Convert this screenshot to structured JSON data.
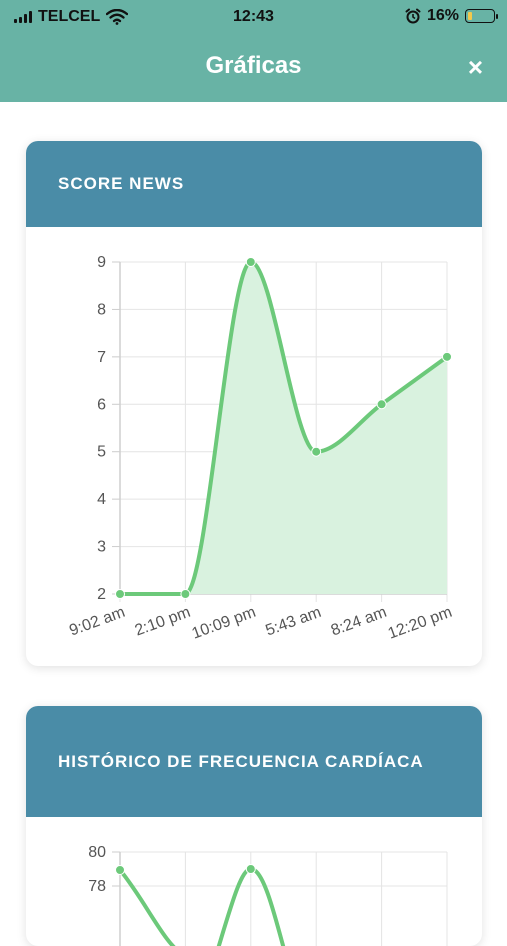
{
  "status_bar": {
    "carrier": "TELCEL",
    "time": "12:43",
    "battery": "16%",
    "battery_level": 0.16
  },
  "header": {
    "title": "Gráficas",
    "close_label": "×"
  },
  "charts": [
    {
      "title": "SCORE NEWS",
      "chart_data": {
        "type": "area",
        "categories": [
          "9:02 am",
          "2:10 pm",
          "10:09 pm",
          "5:43 am",
          "8:24 am",
          "12:20 pm"
        ],
        "values": [
          2,
          2,
          9,
          5,
          6,
          7
        ],
        "ylim": [
          2,
          9
        ],
        "yticks": [
          2,
          3,
          4,
          5,
          6,
          7,
          8,
          9
        ],
        "grid": true,
        "line_color": "#6cc97a",
        "fill_color": "#d9f2df"
      }
    },
    {
      "title": "HISTÓRICO DE FRECUENCIA CARDÍACA",
      "chart_data": {
        "type": "area",
        "categories": [],
        "yticks": [
          78,
          80
        ],
        "grid": true,
        "line_color": "#6cc97a"
      }
    }
  ]
}
